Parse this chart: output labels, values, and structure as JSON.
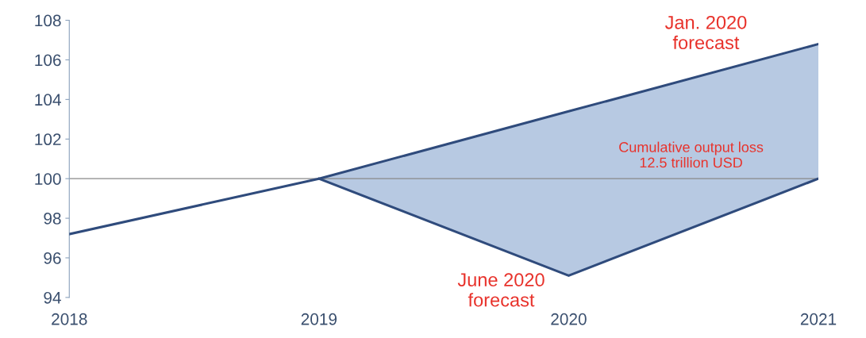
{
  "chart_data": {
    "type": "line",
    "x": [
      2018,
      2019,
      2020,
      2021
    ],
    "series": [
      {
        "name": "Jan. 2020 forecast",
        "color": "#2f4b7c",
        "values": [
          97.2,
          100,
          103.4,
          106.8
        ],
        "lower": [
          null,
          100,
          95.1,
          100
        ],
        "upper": [
          null,
          100,
          103.4,
          106.8
        ]
      },
      {
        "name": "June 2020 forecast",
        "color": "#2f4b7c",
        "values": [
          null,
          100,
          95.1,
          100
        ]
      }
    ],
    "annotations": [
      "Cumulative output loss\n12.5 trillion USD"
    ],
    "ref_lines": [
      {
        "axis": "y",
        "value": 100,
        "color": "#888888"
      }
    ],
    "xlim": [
      2018,
      2021
    ],
    "xticks": [
      2018,
      2019,
      2020,
      2021
    ],
    "ylim": [
      94,
      108
    ],
    "yticks": [
      94,
      96,
      98,
      100,
      102,
      104,
      106,
      108
    ],
    "grid": false,
    "legend": false
  }
}
